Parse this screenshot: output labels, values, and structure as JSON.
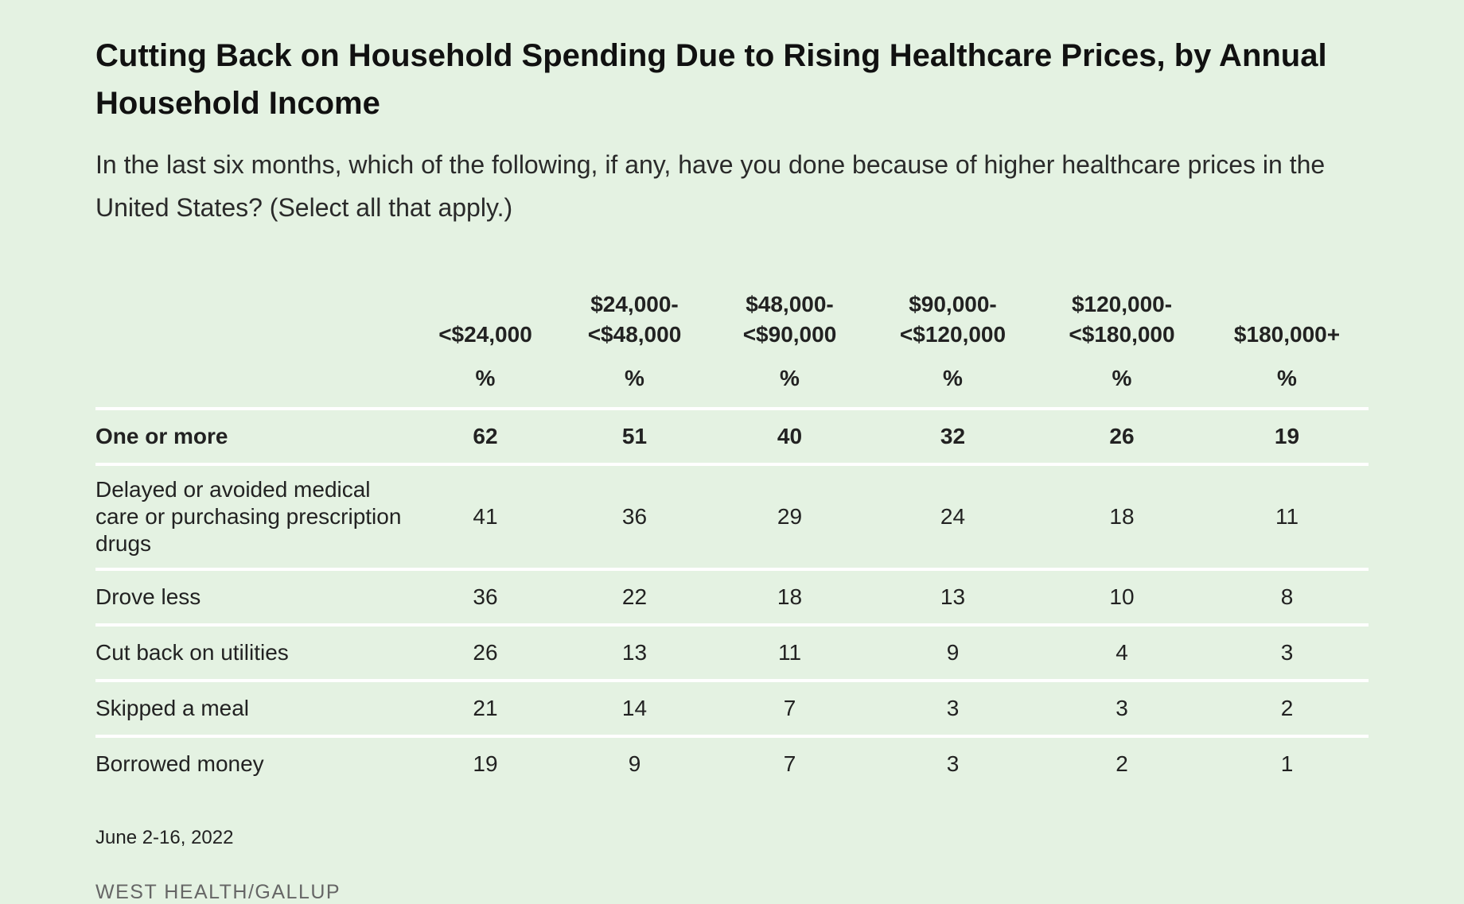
{
  "header": {
    "title": "Cutting Back on Household Spending Due to Rising Healthcare Prices, by Annual Household Income",
    "subtitle": "In the last six months, which of the following, if any, have you done because of higher healthcare prices in the United States? (Select all that apply.)"
  },
  "table": {
    "columns": [
      {
        "line1": "",
        "line2": "<$24,000",
        "unit": "%"
      },
      {
        "line1": "$24,000-",
        "line2": "<$48,000",
        "unit": "%"
      },
      {
        "line1": "$48,000-",
        "line2": "<$90,000",
        "unit": "%"
      },
      {
        "line1": "$90,000-",
        "line2": "<$120,000",
        "unit": "%"
      },
      {
        "line1": "$120,000-",
        "line2": "<$180,000",
        "unit": "%"
      },
      {
        "line1": "",
        "line2": "$180,000+",
        "unit": "%"
      }
    ],
    "rows": [
      {
        "label": "One or more",
        "values": [
          "62",
          "51",
          "40",
          "32",
          "26",
          "19"
        ]
      },
      {
        "label": "Delayed or avoided medical care or purchasing prescription drugs",
        "values": [
          "41",
          "36",
          "29",
          "24",
          "18",
          "11"
        ]
      },
      {
        "label": "Drove less",
        "values": [
          "36",
          "22",
          "18",
          "13",
          "10",
          "8"
        ]
      },
      {
        "label": "Cut back on utilities",
        "values": [
          "26",
          "13",
          "11",
          "9",
          "4",
          "3"
        ]
      },
      {
        "label": "Skipped a meal",
        "values": [
          "21",
          "14",
          "7",
          "3",
          "3",
          "2"
        ]
      },
      {
        "label": "Borrowed money",
        "values": [
          "19",
          "9",
          "7",
          "3",
          "2",
          "1"
        ]
      }
    ]
  },
  "chart_data": {
    "type": "table",
    "title": "Cutting Back on Household Spending Due to Rising Healthcare Prices, by Annual Household Income",
    "subtitle": "In the last six months, which of the following, if any, have you done because of higher healthcare prices in the United States? (Select all that apply.)",
    "categories": [
      "<$24,000",
      "$24,000-<$48,000",
      "$48,000-<$90,000",
      "$90,000-<$120,000",
      "$120,000-<$180,000",
      "$180,000+"
    ],
    "unit": "%",
    "series": [
      {
        "name": "One or more",
        "values": [
          62,
          51,
          40,
          32,
          26,
          19
        ]
      },
      {
        "name": "Delayed or avoided medical care or purchasing prescription drugs",
        "values": [
          41,
          36,
          29,
          24,
          18,
          11
        ]
      },
      {
        "name": "Drove less",
        "values": [
          36,
          22,
          18,
          13,
          10,
          8
        ]
      },
      {
        "name": "Cut back on utilities",
        "values": [
          26,
          13,
          11,
          9,
          4,
          3
        ]
      },
      {
        "name": "Skipped a meal",
        "values": [
          21,
          14,
          7,
          3,
          3,
          2
        ]
      },
      {
        "name": "Borrowed money",
        "values": [
          19,
          9,
          7,
          3,
          2,
          1
        ]
      }
    ]
  },
  "footer": {
    "date": "June 2-16, 2022",
    "source": "WEST HEALTH/GALLUP"
  },
  "colors": {
    "background": "#e4f2e2",
    "divider": "#ffffff",
    "source_text": "#666666"
  }
}
